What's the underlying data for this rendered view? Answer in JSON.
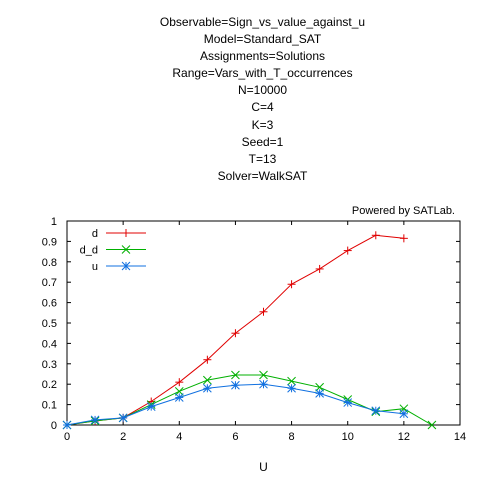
{
  "header": {
    "lines": [
      "Observable=Sign_vs_value_against_u",
      "Model=Standard_SAT",
      "Assignments=Solutions",
      "Range=Vars_with_T_occurrences",
      "N=10000",
      "C=4",
      "K=3",
      "Seed=1",
      "T=13",
      "Solver=WalkSAT"
    ]
  },
  "chart_data": {
    "type": "line",
    "title": "",
    "xlabel": "U",
    "ylabel": "",
    "xlim": [
      0,
      14
    ],
    "ylim": [
      0,
      1
    ],
    "xticks": [
      "0",
      "2",
      "4",
      "6",
      "8",
      "10",
      "12",
      "14"
    ],
    "yticks": [
      "0",
      "0.1",
      "0.2",
      "0.3",
      "0.4",
      "0.5",
      "0.6",
      "0.7",
      "0.8",
      "0.9",
      "1"
    ],
    "annotation": "Powered by SATLab.",
    "legend_position": "top-left",
    "grid": false,
    "series": [
      {
        "name": "d",
        "color": "#e00000",
        "marker": "plus",
        "points": [
          [
            0,
            0
          ],
          [
            1,
            0.02
          ],
          [
            2,
            0.035
          ],
          [
            3,
            0.115
          ],
          [
            4,
            0.21
          ],
          [
            5,
            0.32
          ],
          [
            6,
            0.45
          ],
          [
            7,
            0.555
          ],
          [
            8,
            0.69
          ],
          [
            9,
            0.765
          ],
          [
            10,
            0.855
          ],
          [
            11,
            0.93
          ],
          [
            12,
            0.915
          ]
        ]
      },
      {
        "name": "d_d",
        "color": "#00b000",
        "marker": "cross",
        "points": [
          [
            0,
            0
          ],
          [
            1,
            0.02
          ],
          [
            2,
            0.035
          ],
          [
            3,
            0.1
          ],
          [
            4,
            0.165
          ],
          [
            5,
            0.22
          ],
          [
            6,
            0.245
          ],
          [
            7,
            0.245
          ],
          [
            8,
            0.215
          ],
          [
            9,
            0.185
          ],
          [
            10,
            0.125
          ],
          [
            11,
            0.065
          ],
          [
            12,
            0.08
          ],
          [
            13,
            0
          ]
        ]
      },
      {
        "name": "u",
        "color": "#1070e0",
        "marker": "star",
        "points": [
          [
            0,
            0
          ],
          [
            1,
            0.025
          ],
          [
            2,
            0.035
          ],
          [
            3,
            0.09
          ],
          [
            4,
            0.135
          ],
          [
            5,
            0.18
          ],
          [
            6,
            0.195
          ],
          [
            7,
            0.2
          ],
          [
            8,
            0.18
          ],
          [
            9,
            0.155
          ],
          [
            10,
            0.11
          ],
          [
            11,
            0.07
          ],
          [
            12,
            0.055
          ]
        ]
      }
    ]
  }
}
